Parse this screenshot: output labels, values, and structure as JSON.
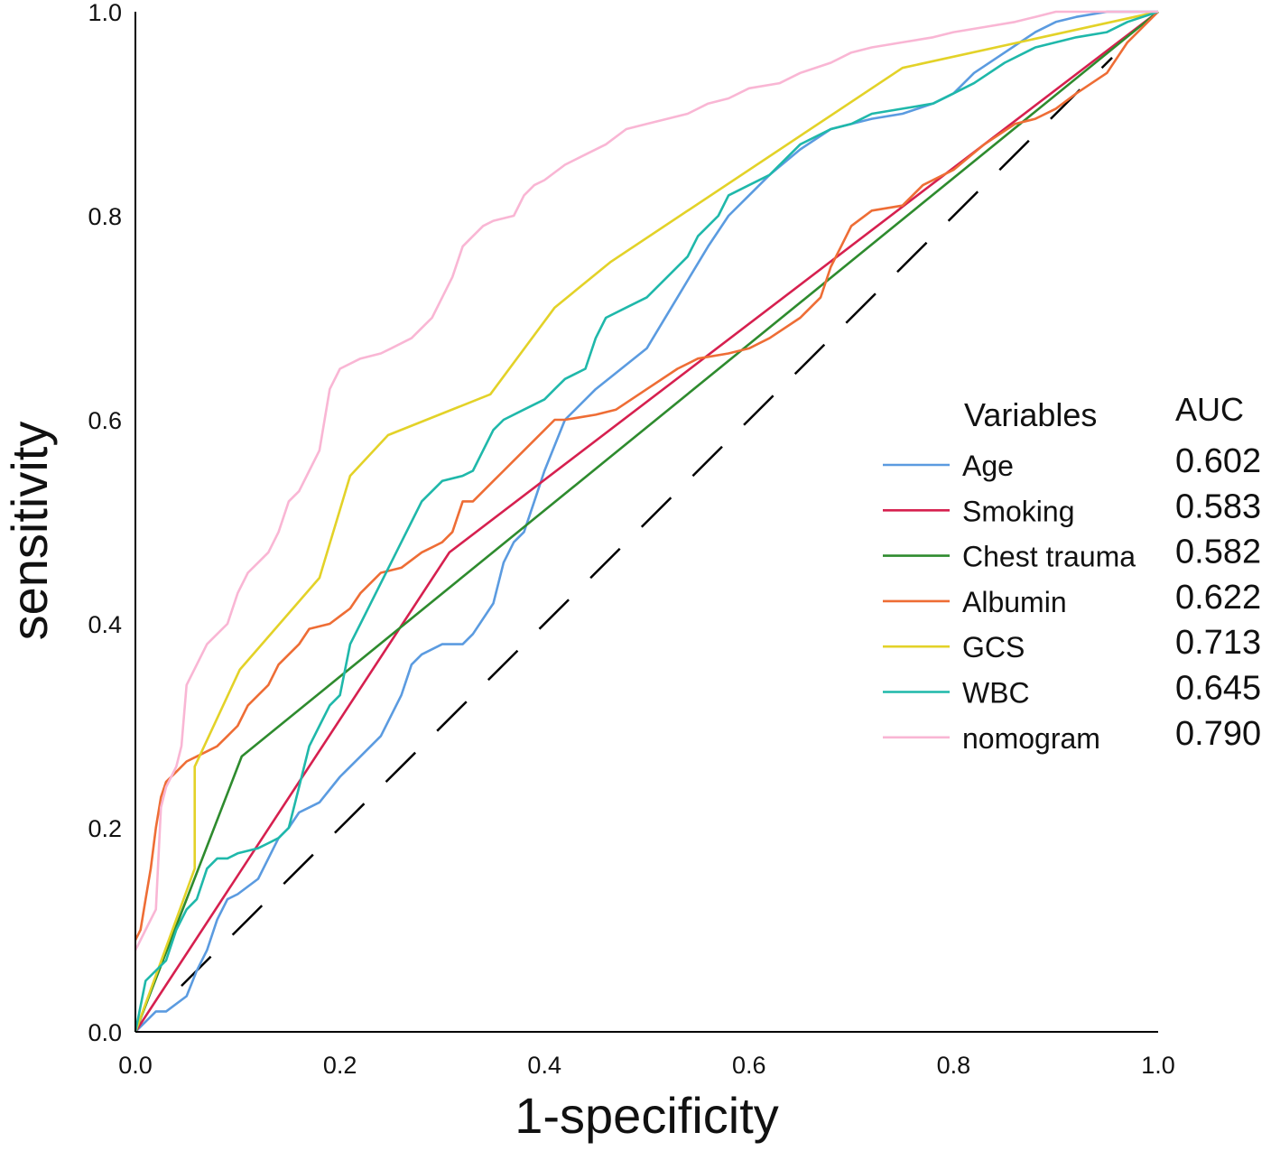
{
  "chart_data": {
    "type": "line",
    "title": "",
    "xlabel": "1-specificity",
    "ylabel": "sensitivity",
    "xlim": [
      0,
      1
    ],
    "ylim": [
      0,
      1
    ],
    "xticks": [
      "0.0",
      "0.2",
      "0.4",
      "0.6",
      "0.8",
      "1.0"
    ],
    "yticks": [
      "0.0",
      "0.2",
      "0.4",
      "0.6",
      "0.8",
      "1.0"
    ],
    "legend": {
      "title": "Variables",
      "auc_header": "AUC",
      "placement": "right"
    },
    "reference_line": {
      "name": "diagonal",
      "color": "#000000",
      "dashed": true,
      "x": [
        0,
        1
      ],
      "y": [
        0,
        1
      ]
    },
    "series": [
      {
        "name": "Age",
        "auc": "0.602",
        "color": "#5B9BE0",
        "x": [
          0,
          0.02,
          0.03,
          0.05,
          0.06,
          0.07,
          0.08,
          0.09,
          0.1,
          0.12,
          0.13,
          0.14,
          0.15,
          0.16,
          0.17,
          0.18,
          0.2,
          0.22,
          0.24,
          0.26,
          0.27,
          0.28,
          0.3,
          0.32,
          0.33,
          0.35,
          0.36,
          0.37,
          0.38,
          0.39,
          0.4,
          0.42,
          0.45,
          0.5,
          0.53,
          0.56,
          0.58,
          0.6,
          0.62,
          0.65,
          0.68,
          0.7,
          0.72,
          0.75,
          0.78,
          0.8,
          0.82,
          0.85,
          0.88,
          0.9,
          0.92,
          0.95,
          1.0
        ],
        "y": [
          0,
          0.02,
          0.02,
          0.035,
          0.06,
          0.08,
          0.11,
          0.13,
          0.135,
          0.15,
          0.17,
          0.19,
          0.2,
          0.215,
          0.22,
          0.225,
          0.25,
          0.27,
          0.29,
          0.33,
          0.36,
          0.37,
          0.38,
          0.38,
          0.39,
          0.42,
          0.46,
          0.48,
          0.49,
          0.52,
          0.55,
          0.6,
          0.63,
          0.67,
          0.72,
          0.77,
          0.8,
          0.82,
          0.84,
          0.865,
          0.885,
          0.89,
          0.895,
          0.9,
          0.91,
          0.92,
          0.94,
          0.96,
          0.98,
          0.99,
          0.995,
          1.0,
          1.0
        ]
      },
      {
        "name": "Smoking",
        "auc": "0.583",
        "color": "#D6204F",
        "x": [
          0,
          0.307,
          1.0
        ],
        "y": [
          0,
          0.47,
          1.0
        ]
      },
      {
        "name": "Chest trauma",
        "auc": "0.582",
        "color": "#2E8B2E",
        "x": [
          0,
          0.104,
          1.0
        ],
        "y": [
          0,
          0.27,
          1.0
        ]
      },
      {
        "name": "Albumin",
        "auc": "0.622",
        "color": "#EE6D35",
        "x": [
          0,
          0.005,
          0.01,
          0.015,
          0.02,
          0.025,
          0.03,
          0.04,
          0.05,
          0.06,
          0.07,
          0.08,
          0.09,
          0.1,
          0.11,
          0.12,
          0.13,
          0.14,
          0.15,
          0.16,
          0.17,
          0.19,
          0.21,
          0.22,
          0.23,
          0.24,
          0.26,
          0.28,
          0.29,
          0.3,
          0.31,
          0.32,
          0.33,
          0.35,
          0.36,
          0.37,
          0.39,
          0.41,
          0.42,
          0.45,
          0.47,
          0.5,
          0.53,
          0.55,
          0.58,
          0.6,
          0.62,
          0.65,
          0.67,
          0.68,
          0.69,
          0.7,
          0.72,
          0.75,
          0.77,
          0.8,
          0.83,
          0.86,
          0.88,
          0.9,
          0.92,
          0.95,
          0.97,
          1.0
        ],
        "y": [
          0.09,
          0.1,
          0.13,
          0.16,
          0.2,
          0.23,
          0.245,
          0.255,
          0.265,
          0.27,
          0.275,
          0.28,
          0.29,
          0.3,
          0.32,
          0.33,
          0.34,
          0.36,
          0.37,
          0.38,
          0.395,
          0.4,
          0.415,
          0.43,
          0.44,
          0.45,
          0.455,
          0.47,
          0.475,
          0.48,
          0.49,
          0.52,
          0.52,
          0.54,
          0.55,
          0.56,
          0.58,
          0.6,
          0.6,
          0.605,
          0.61,
          0.63,
          0.65,
          0.66,
          0.665,
          0.67,
          0.68,
          0.7,
          0.72,
          0.75,
          0.77,
          0.79,
          0.805,
          0.81,
          0.83,
          0.845,
          0.87,
          0.89,
          0.895,
          0.905,
          0.92,
          0.94,
          0.97,
          1.0
        ]
      },
      {
        "name": "GCS",
        "auc": "0.713",
        "color": "#E3D228",
        "x": [
          0,
          0.058,
          0.058,
          0.102,
          0.18,
          0.21,
          0.247,
          0.347,
          0.41,
          0.465,
          0.75,
          1.0
        ],
        "y": [
          0,
          0.16,
          0.26,
          0.355,
          0.445,
          0.545,
          0.585,
          0.625,
          0.71,
          0.755,
          0.945,
          1.0
        ]
      },
      {
        "name": "WBC",
        "auc": "0.645",
        "color": "#1FB8AA",
        "x": [
          0,
          0.01,
          0.03,
          0.04,
          0.05,
          0.06,
          0.07,
          0.08,
          0.09,
          0.1,
          0.12,
          0.13,
          0.14,
          0.15,
          0.16,
          0.17,
          0.18,
          0.19,
          0.2,
          0.21,
          0.22,
          0.23,
          0.25,
          0.26,
          0.27,
          0.28,
          0.29,
          0.3,
          0.32,
          0.33,
          0.35,
          0.36,
          0.38,
          0.4,
          0.41,
          0.42,
          0.44,
          0.45,
          0.46,
          0.48,
          0.5,
          0.52,
          0.54,
          0.55,
          0.57,
          0.58,
          0.6,
          0.62,
          0.65,
          0.68,
          0.7,
          0.72,
          0.75,
          0.78,
          0.8,
          0.82,
          0.85,
          0.88,
          0.9,
          0.92,
          0.95,
          0.97,
          1.0
        ],
        "y": [
          0,
          0.05,
          0.07,
          0.1,
          0.12,
          0.13,
          0.16,
          0.17,
          0.17,
          0.175,
          0.18,
          0.185,
          0.19,
          0.2,
          0.24,
          0.28,
          0.3,
          0.32,
          0.33,
          0.38,
          0.4,
          0.42,
          0.46,
          0.48,
          0.5,
          0.52,
          0.53,
          0.54,
          0.545,
          0.55,
          0.59,
          0.6,
          0.61,
          0.62,
          0.63,
          0.64,
          0.65,
          0.68,
          0.7,
          0.71,
          0.72,
          0.74,
          0.76,
          0.78,
          0.8,
          0.82,
          0.83,
          0.84,
          0.87,
          0.885,
          0.89,
          0.9,
          0.905,
          0.91,
          0.92,
          0.93,
          0.95,
          0.965,
          0.97,
          0.975,
          0.98,
          0.99,
          1.0
        ]
      },
      {
        "name": "nomogram",
        "auc": "0.790",
        "color": "#F9B6D4",
        "x": [
          0,
          0.005,
          0.01,
          0.02,
          0.025,
          0.03,
          0.04,
          0.045,
          0.05,
          0.06,
          0.07,
          0.08,
          0.09,
          0.1,
          0.11,
          0.12,
          0.13,
          0.14,
          0.15,
          0.16,
          0.17,
          0.18,
          0.19,
          0.2,
          0.22,
          0.24,
          0.25,
          0.27,
          0.28,
          0.29,
          0.3,
          0.31,
          0.32,
          0.33,
          0.34,
          0.35,
          0.37,
          0.38,
          0.39,
          0.4,
          0.42,
          0.44,
          0.46,
          0.48,
          0.5,
          0.52,
          0.54,
          0.56,
          0.58,
          0.6,
          0.63,
          0.65,
          0.68,
          0.7,
          0.72,
          0.75,
          0.78,
          0.8,
          0.83,
          0.86,
          0.88,
          0.9,
          0.92,
          0.95,
          0.98,
          1.0
        ],
        "y": [
          0.08,
          0.09,
          0.1,
          0.12,
          0.22,
          0.24,
          0.26,
          0.28,
          0.34,
          0.36,
          0.38,
          0.39,
          0.4,
          0.43,
          0.45,
          0.46,
          0.47,
          0.49,
          0.52,
          0.53,
          0.55,
          0.57,
          0.63,
          0.65,
          0.66,
          0.665,
          0.67,
          0.68,
          0.69,
          0.7,
          0.72,
          0.74,
          0.77,
          0.78,
          0.79,
          0.795,
          0.8,
          0.82,
          0.83,
          0.835,
          0.85,
          0.86,
          0.87,
          0.885,
          0.89,
          0.895,
          0.9,
          0.91,
          0.915,
          0.925,
          0.93,
          0.94,
          0.95,
          0.96,
          0.965,
          0.97,
          0.975,
          0.98,
          0.985,
          0.99,
          0.995,
          1.0,
          1.0,
          1.0,
          1.0,
          1.0
        ]
      }
    ]
  }
}
